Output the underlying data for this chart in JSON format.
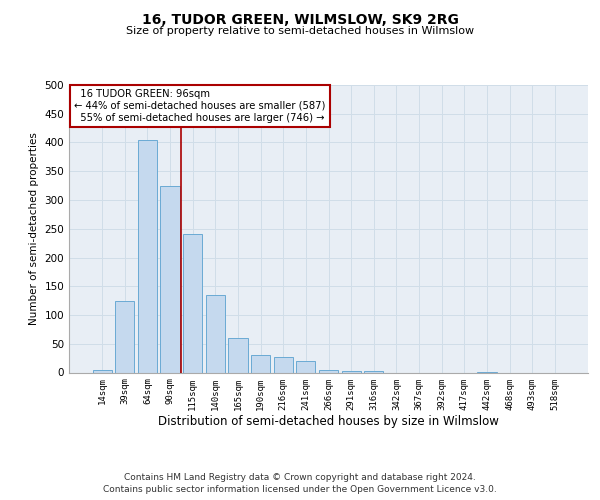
{
  "title1": "16, TUDOR GREEN, WILMSLOW, SK9 2RG",
  "title2": "Size of property relative to semi-detached houses in Wilmslow",
  "xlabel": "Distribution of semi-detached houses by size in Wilmslow",
  "ylabel": "Number of semi-detached properties",
  "footnote1": "Contains HM Land Registry data © Crown copyright and database right 2024.",
  "footnote2": "Contains public sector information licensed under the Open Government Licence v3.0.",
  "bar_labels": [
    "14sqm",
    "39sqm",
    "64sqm",
    "90sqm",
    "115sqm",
    "140sqm",
    "165sqm",
    "190sqm",
    "216sqm",
    "241sqm",
    "266sqm",
    "291sqm",
    "316sqm",
    "342sqm",
    "367sqm",
    "392sqm",
    "417sqm",
    "442sqm",
    "468sqm",
    "493sqm",
    "518sqm"
  ],
  "bar_values": [
    5,
    125,
    405,
    325,
    240,
    135,
    60,
    30,
    27,
    20,
    5,
    3,
    2,
    0,
    0,
    0,
    0,
    1,
    0,
    0,
    0
  ],
  "bar_color": "#c5d9ee",
  "bar_edge_color": "#6aaad4",
  "grid_color": "#d0dde8",
  "property_label": "16 TUDOR GREEN: 96sqm",
  "pct_smaller": 44,
  "n_smaller": 587,
  "pct_larger": 55,
  "n_larger": 746,
  "vline_color": "#aa0000",
  "annotation_box_edge": "#aa0000",
  "ylim": [
    0,
    500
  ],
  "yticks": [
    0,
    50,
    100,
    150,
    200,
    250,
    300,
    350,
    400,
    450,
    500
  ],
  "vline_x_idx": 3.5,
  "background_color": "#e8eef5"
}
